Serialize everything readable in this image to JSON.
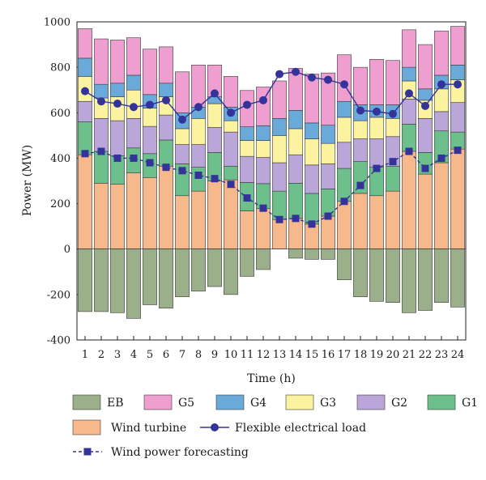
{
  "chart_data": {
    "type": "bar",
    "subtype": "stacked bar with line overlays",
    "xlabel": "Time (h)",
    "ylabel": "Power (MW)",
    "ylim": [
      -400,
      1000
    ],
    "yticks": [
      -400,
      -200,
      0,
      200,
      400,
      600,
      800,
      1000
    ],
    "categories": [
      "1",
      "2",
      "3",
      "4",
      "5",
      "6",
      "7",
      "8",
      "9",
      "10",
      "11",
      "12",
      "13",
      "14",
      "15",
      "16",
      "17",
      "18",
      "19",
      "20",
      "21",
      "22",
      "23",
      "24"
    ],
    "stack_order": [
      "Wind turbine",
      "G1",
      "G2",
      "G3",
      "G4",
      "G5"
    ],
    "series": [
      {
        "name": "Wind turbine",
        "color": "#f7b98b",
        "values": [
          415,
          290,
          285,
          335,
          315,
          365,
          235,
          255,
          300,
          305,
          168,
          178,
          130,
          135,
          110,
          145,
          210,
          245,
          235,
          255,
          430,
          330,
          380,
          440
        ]
      },
      {
        "name": "G1",
        "color": "#6dc08c",
        "values": [
          145,
          140,
          125,
          110,
          105,
          115,
          140,
          105,
          125,
          60,
          125,
          110,
          125,
          155,
          135,
          120,
          145,
          140,
          125,
          110,
          120,
          95,
          140,
          75
        ]
      },
      {
        "name": "G2",
        "color": "#bba6d9",
        "values": [
          90,
          145,
          155,
          130,
          120,
          110,
          85,
          100,
          110,
          150,
          115,
          115,
          125,
          125,
          125,
          110,
          115,
          100,
          125,
          130,
          110,
          150,
          85,
          130
        ]
      },
      {
        "name": "G3",
        "color": "#fbf3a0",
        "values": [
          110,
          90,
          105,
          125,
          80,
          80,
          70,
          115,
          105,
          50,
          70,
          75,
          120,
          115,
          115,
          90,
          110,
          80,
          95,
          80,
          80,
          80,
          100,
          100
        ]
      },
      {
        "name": "G4",
        "color": "#6aaadb",
        "values": [
          80,
          60,
          60,
          65,
          60,
          60,
          70,
          50,
          30,
          60,
          60,
          65,
          75,
          80,
          70,
          80,
          70,
          70,
          55,
          60,
          60,
          50,
          60,
          65
        ]
      },
      {
        "name": "G5",
        "color": "#ef9fcf",
        "values": [
          130,
          200,
          190,
          165,
          200,
          160,
          180,
          185,
          140,
          135,
          160,
          170,
          165,
          185,
          215,
          230,
          205,
          165,
          200,
          195,
          165,
          195,
          195,
          170
        ]
      },
      {
        "name": "EB",
        "color": "#9bb08a",
        "values": [
          -275,
          -275,
          -280,
          -305,
          -245,
          -260,
          -210,
          -185,
          -165,
          -200,
          -120,
          -90,
          0,
          -40,
          -45,
          -45,
          -135,
          -210,
          -230,
          -235,
          -280,
          -270,
          -235,
          -255
        ]
      }
    ],
    "lines": [
      {
        "name": "Flexible electrical load",
        "color": "#33339a",
        "marker": "circle",
        "values": [
          695,
          650,
          640,
          625,
          635,
          655,
          570,
          625,
          685,
          600,
          635,
          655,
          770,
          780,
          755,
          745,
          725,
          610,
          605,
          595,
          685,
          630,
          725,
          725
        ]
      },
      {
        "name": "Wind power forecasting",
        "color": "#33339a",
        "marker": "square",
        "dashed": true,
        "values": [
          420,
          430,
          400,
          400,
          380,
          360,
          345,
          325,
          310,
          285,
          225,
          180,
          130,
          135,
          110,
          145,
          210,
          280,
          355,
          385,
          430,
          355,
          400,
          435
        ]
      }
    ],
    "legend_position": "bottom",
    "legend": {
      "row1": [
        "EB",
        "G5",
        "G4",
        "G3",
        "G2",
        "G1"
      ],
      "row2": [
        "Wind turbine",
        "Flexible electrical load"
      ],
      "row3": [
        "Wind power forecasting"
      ]
    }
  }
}
